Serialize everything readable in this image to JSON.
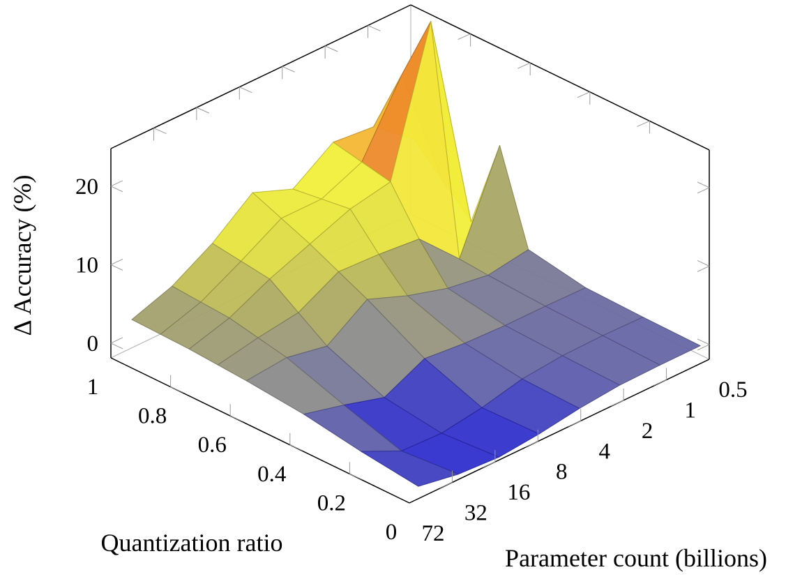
{
  "chart_data": {
    "type": "surface3d",
    "title": "",
    "xlabel": "Parameter count (billions)",
    "ylabel": "Quantization ratio",
    "zlabel": "Δ Accuracy (%)",
    "x_values": [
      72,
      32,
      16,
      8,
      4,
      2,
      1,
      0.5
    ],
    "x_tick_labels": [
      "72",
      "32",
      "16",
      "8",
      "4",
      "2",
      "1",
      "0.5"
    ],
    "x_scale": "log2-reversed",
    "y_rows": [
      0,
      0.2,
      0.4,
      0.6,
      0.7,
      0.8,
      0.9,
      1.0
    ],
    "y_tick_values": [
      1,
      0.8,
      0.6,
      0.4,
      0.2,
      0
    ],
    "y_tick_labels": [
      "1",
      "0.8",
      "0.6",
      "0.4",
      "0.2",
      "0"
    ],
    "z_tick_values": [
      0,
      10,
      20
    ],
    "z_tick_labels": [
      "0",
      "10",
      "20"
    ],
    "z_axis_range_display": [
      -1.87,
      24.8
    ],
    "grid": false,
    "legend_position": "none",
    "z_grid": [
      [
        -0.3,
        -1.2,
        -1.5,
        -1.0,
        -0.2,
        0.3,
        0.4,
        0.4
      ],
      [
        0.6,
        -1.8,
        -2.0,
        -1.2,
        0.0,
        0.5,
        0.6,
        0.5
      ],
      [
        1.8,
        0.5,
        -1.0,
        1.5,
        1.0,
        0.8,
        0.8,
        0.7
      ],
      [
        2.5,
        3.0,
        2.0,
        5.5,
        3.5,
        2.0,
        1.2,
        2.0
      ],
      [
        2.75,
        3.75,
        4.5,
        7.25,
        7.0,
        6.5,
        1.5,
        13.5
      ],
      [
        3.0,
        4.5,
        7.0,
        9.0,
        11.0,
        12.0,
        30.0,
        2.0
      ],
      [
        3.1,
        4.75,
        7.5,
        10.5,
        10.5,
        12.75,
        21.5,
        5.5
      ],
      [
        3.2,
        5.0,
        8.0,
        12.0,
        10.0,
        13.5,
        13.0,
        9.0
      ]
    ],
    "colormap": [
      [
        -2.1,
        "#2828d2"
      ],
      [
        -0.8,
        "#3a3ac4"
      ],
      [
        0.0,
        "#5858b2"
      ],
      [
        0.8,
        "#70709e"
      ],
      [
        2.0,
        "#8c8c8a"
      ],
      [
        3.5,
        "#9e9c74"
      ],
      [
        5.0,
        "#afac61"
      ],
      [
        7.0,
        "#cdca50"
      ],
      [
        9.0,
        "#e4e23e"
      ],
      [
        12.0,
        "#f2f03a"
      ],
      [
        13.8,
        "#f4d03a"
      ],
      [
        15.5,
        "#f3b134"
      ],
      [
        18.0,
        "#ee8c2b"
      ],
      [
        30.0,
        "#e67824"
      ]
    ],
    "face_opacity": 0.95,
    "frame_color": "#000000",
    "hidden_edge_color": "#b3b3b3",
    "tick_color": "#999999",
    "text_color": "#000000"
  }
}
